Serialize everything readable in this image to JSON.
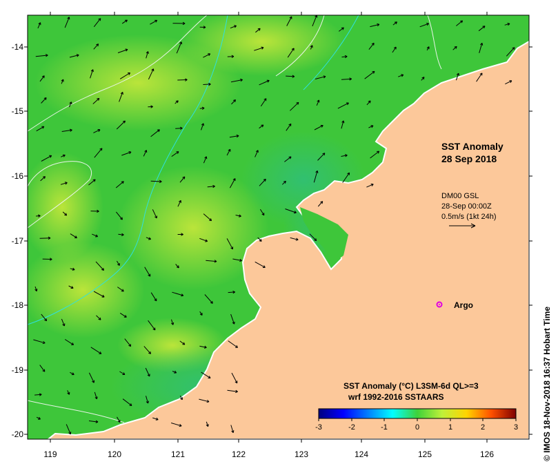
{
  "map": {
    "title_line1": "SST Anomaly",
    "title_line2": "28 Sep 2018",
    "wind_model": "DM00 GSL",
    "wind_time": "28-Sep 00:00Z",
    "wind_scale": "0.5m/s (1kt 24h)",
    "argo_label": "Argo",
    "argo_position": {
      "lon": 125.3,
      "lat": -18.0
    },
    "argo_color": "#e000e0",
    "credit": "© IMOS 18-Nov-2018 16:37 Hobart Time",
    "colorbar_title_line1": "SST Anomaly (°C) L3SM-6d QL>=3",
    "colorbar_title_line2": "wrf 1992-2016 SSTAARS",
    "colorbar_ticks": [
      "-3",
      "-2",
      "-1",
      "0",
      "1",
      "2",
      "3"
    ],
    "colorbar_colors": [
      "#00007f",
      "#0000ff",
      "#007fff",
      "#00ffff",
      "#7fff7f",
      "#ffff00",
      "#ff7f00",
      "#ff0000",
      "#7f0000"
    ],
    "land_color": "#fcc89a",
    "ocean_color": "#3ec63a",
    "lon_ticks": [
      "119",
      "120",
      "121",
      "122",
      "123",
      "124",
      "125",
      "126"
    ],
    "lat_ticks": [
      "-14",
      "-15",
      "-16",
      "-17",
      "-18",
      "-19",
      "-20"
    ]
  }
}
